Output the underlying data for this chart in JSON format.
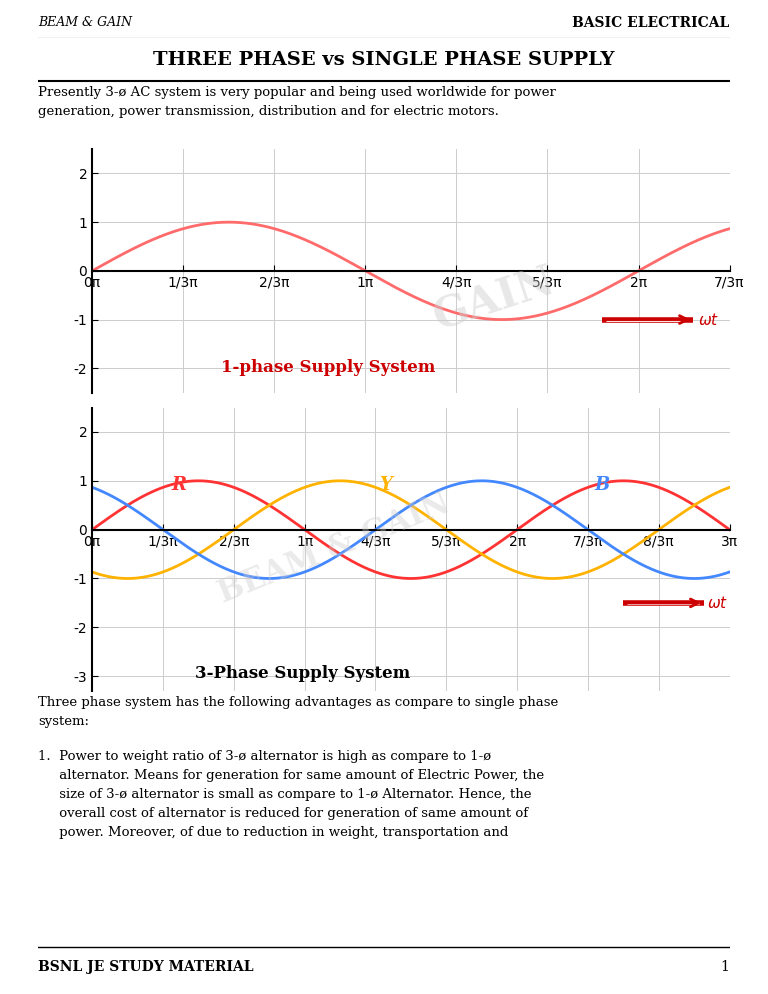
{
  "page_title": "THREE PHASE vs SINGLE PHASE SUPPLY",
  "header_left": "BEAM & GAIN",
  "header_right": "BASIC ELECTRICAL",
  "footer_left": "BSNL JE STUDY MATERIAL",
  "footer_page": "1",
  "intro_text": "Presently 3-ø AC system is very popular and being used worldwide for power\ngeneration, power transmission, distribution and for electric motors.",
  "body_text": "Three phase system has the following advantages as compare to single phase\nsystem:",
  "list_text_line1": "1.  Power to weight ratio of 3-ø alternator is high as compare to 1-ø",
  "list_text_line2": "     alternator. Means for generation for same amount of Electric Power, the",
  "list_text_line3": "     size of 3-ø alternator is small as compare to 1-ø Alternator. Hence, the",
  "list_text_line4": "     overall cost of alternator is reduced for generation of same amount of",
  "list_text_line5": "     power. Moreover, of due to reduction in weight, transportation and",
  "plot1_title": "1-phase Supply System",
  "plot1_color": "#FF6B6B",
  "plot1_ylim": [
    -2.5,
    2.5
  ],
  "plot1_yticks": [
    -2,
    -1,
    0,
    1,
    2
  ],
  "plot1_xlabels": [
    "0π",
    "1/3π",
    "2/3π",
    "1π",
    "4/3π",
    "5/3π",
    "2π",
    "7/3π"
  ],
  "plot2_title": "3-Phase Supply System",
  "plot2_ylim": [
    -3.3,
    2.5
  ],
  "plot2_yticks": [
    -3,
    -2,
    -1,
    0,
    1,
    2
  ],
  "plot2_xlabels": [
    "0π",
    "1/3π",
    "2/3π",
    "1π",
    "4/3π",
    "5/3π",
    "2π",
    "7/3π",
    "8/3π",
    "3π"
  ],
  "phase_R_color": "#FF3333",
  "phase_Y_color": "#FFB300",
  "phase_B_color": "#4488FF",
  "wt_arrow_color": "#CC0000",
  "grid_color": "#CCCCCC",
  "background_color": "#FFFFFF"
}
